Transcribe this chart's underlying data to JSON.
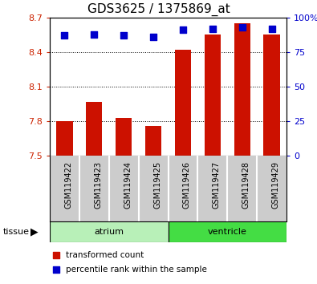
{
  "title": "GDS3625 / 1375869_at",
  "samples": [
    "GSM119422",
    "GSM119423",
    "GSM119424",
    "GSM119425",
    "GSM119426",
    "GSM119427",
    "GSM119428",
    "GSM119429"
  ],
  "transformed_count": [
    7.8,
    7.97,
    7.83,
    7.76,
    8.42,
    8.55,
    8.65,
    8.55
  ],
  "percentile_rank": [
    87,
    88,
    87,
    86,
    91,
    92,
    93,
    92
  ],
  "bar_bottom": 7.5,
  "ylim_left": [
    7.5,
    8.7
  ],
  "ylim_right": [
    0,
    100
  ],
  "yticks_left": [
    7.5,
    7.8,
    8.1,
    8.4,
    8.7
  ],
  "yticks_right": [
    0,
    25,
    50,
    75,
    100
  ],
  "bar_color": "#cc1100",
  "dot_color": "#0000cc",
  "grid_color": "#000000",
  "tissue_groups": [
    {
      "label": "atrium",
      "indices": [
        0,
        1,
        2,
        3
      ],
      "color": "#b8f0b8"
    },
    {
      "label": "ventricle",
      "indices": [
        4,
        5,
        6,
        7
      ],
      "color": "#44dd44"
    }
  ],
  "tissue_label": "tissue",
  "legend_bar_label": "transformed count",
  "legend_dot_label": "percentile rank within the sample",
  "background_color": "#ffffff",
  "plot_bg_color": "#ffffff",
  "xtick_bg_color": "#cccccc",
  "tick_label_color_left": "#cc2200",
  "tick_label_color_right": "#0000cc",
  "bar_width": 0.55,
  "dot_size": 28,
  "title_fontsize": 11,
  "tick_fontsize": 8,
  "sample_fontsize": 7,
  "legend_fontsize": 7.5,
  "tissue_fontsize": 8
}
